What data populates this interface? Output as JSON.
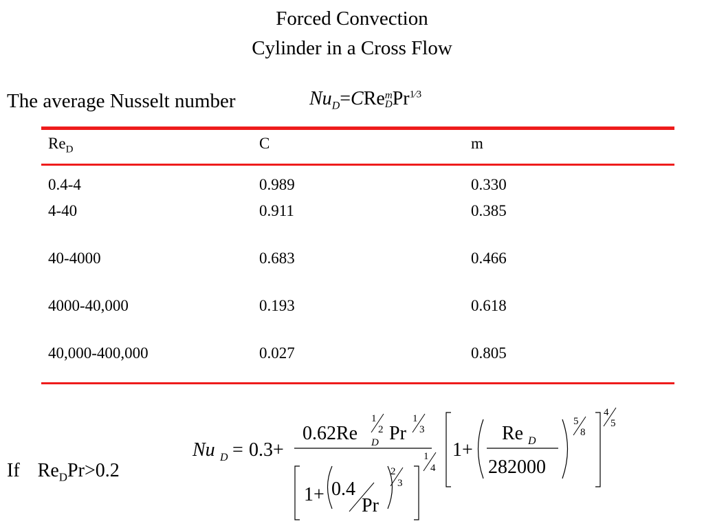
{
  "title": {
    "line1": "Forced Convection",
    "line2": "Cylinder in a Cross Flow"
  },
  "intro_text": "The average Nusselt number",
  "equation_main": {
    "lhs": "Nu",
    "lhs_sub": "D",
    "eq": "=",
    "c": "C",
    "re": "Re",
    "re_sup": "m",
    "re_sub": "D",
    "pr": "Pr",
    "pr_exp": "1⁄3"
  },
  "table": {
    "headers": [
      "Re",
      "C",
      "m"
    ],
    "header_sub": "D",
    "rows": [
      [
        "0.4-4",
        "0.989",
        "0.330"
      ],
      [
        "4-40",
        "0.911",
        "0.385"
      ],
      [
        "40-4000",
        "0.683",
        "0.466"
      ],
      [
        "4000-40,000",
        "0.193",
        "0.618"
      ],
      [
        "40,000-400,000",
        "0.027",
        "0.805"
      ]
    ]
  },
  "condition": {
    "if": "If",
    "re": "Re",
    "re_sub": "D",
    "rest": "Pr>0.2"
  },
  "equation_cond": {
    "lhs": "Nu",
    "lhs_sub": "D",
    "eq": "=",
    "const": "0.3+",
    "num_coef": "0.62Re",
    "num_re_sub": "D",
    "half_n": "1",
    "half_d": "2",
    "pr": "Pr",
    "third_n": "1",
    "third_d": "3",
    "den_one": "1+",
    "den_num": "0.4",
    "den_pr": "Pr",
    "twothirds_n": "2",
    "twothirds_d": "3",
    "quarter_n": "1",
    "quarter_d": "4",
    "br_one": "1+",
    "br_re": "Re",
    "br_re_sub": "D",
    "br_den": "282000",
    "fiveeighths_n": "5",
    "fiveeighths_d": "8",
    "fourfifths_n": "4",
    "fourfifths_d": "5"
  }
}
